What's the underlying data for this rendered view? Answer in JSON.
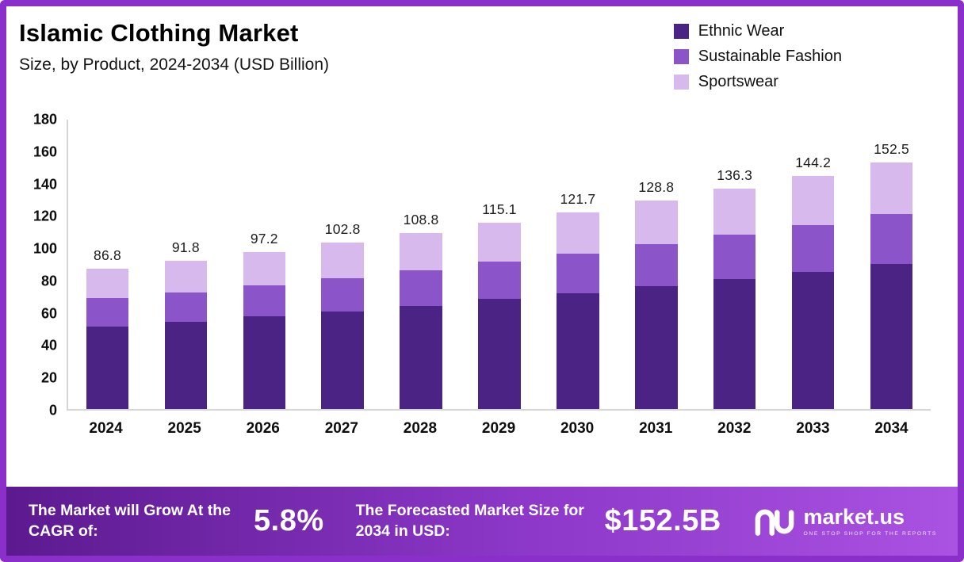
{
  "header": {
    "title": "Islamic Clothing Market",
    "subtitle": "Size, by Product, 2024-2034 (USD Billion)"
  },
  "legend": [
    {
      "label": "Ethnic Wear",
      "color": "#4b2384"
    },
    {
      "label": "Sustainable Fashion",
      "color": "#8b54c9"
    },
    {
      "label": "Sportswear",
      "color": "#d7b9ee"
    }
  ],
  "chart_data": {
    "type": "bar",
    "stacked": true,
    "title": "Islamic Clothing Market Size, by Product, 2024-2034 (USD Billion)",
    "categories": [
      "2024",
      "2025",
      "2026",
      "2027",
      "2028",
      "2029",
      "2030",
      "2031",
      "2032",
      "2033",
      "2034"
    ],
    "series": [
      {
        "name": "Ethnic Wear",
        "color": "#4b2384",
        "values": [
          51.0,
          54.0,
          57.5,
          60.5,
          64.0,
          68.0,
          71.5,
          76.0,
          80.5,
          85.0,
          90.0
        ]
      },
      {
        "name": "Sustainable Fashion",
        "color": "#8b54c9",
        "values": [
          17.5,
          18.3,
          19.2,
          20.5,
          21.8,
          23.0,
          24.5,
          26.0,
          27.3,
          29.0,
          30.5
        ]
      },
      {
        "name": "Sportswear",
        "color": "#d7b9ee",
        "values": [
          18.3,
          19.5,
          20.5,
          21.8,
          23.0,
          24.1,
          25.7,
          26.8,
          28.5,
          30.2,
          32.0
        ]
      }
    ],
    "totals": [
      86.8,
      91.8,
      97.2,
      102.8,
      108.8,
      115.1,
      121.7,
      128.8,
      136.3,
      144.2,
      152.5
    ],
    "xlabel": "",
    "ylabel": "",
    "ylim": [
      0,
      180
    ],
    "yticks": [
      0,
      20,
      40,
      60,
      80,
      100,
      120,
      140,
      160,
      180
    ],
    "grid": false,
    "legend_position": "top-right"
  },
  "banner": {
    "cagr_label": "The Market will Grow At the CAGR of:",
    "cagr_value": "5.8%",
    "forecast_label": "The Forecasted Market Size for 2034 in USD:",
    "forecast_value": "$152.5B",
    "logo_text": "market.us",
    "logo_tagline": "One Stop Shop For The Reports"
  },
  "colors": {
    "frame_border": "#8a2fc9",
    "banner_gradient_start": "#5c1a8f",
    "banner_gradient_end": "#aa52e2",
    "background": "#ffffff"
  }
}
